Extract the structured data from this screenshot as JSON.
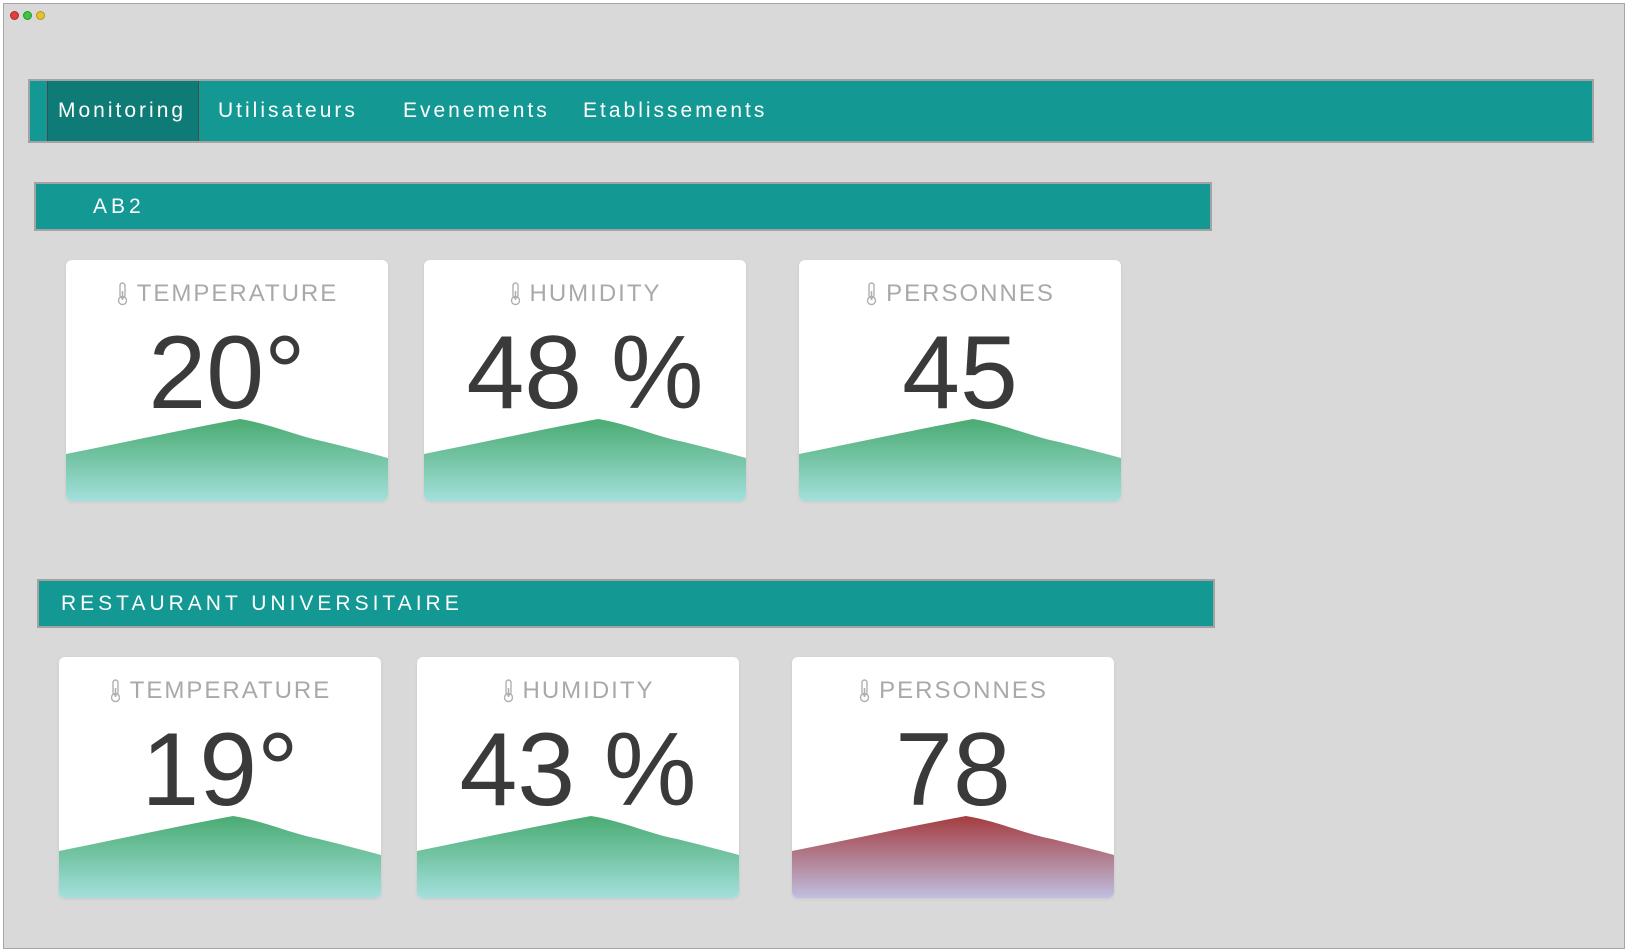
{
  "nav": {
    "items": [
      {
        "label": "Monitoring",
        "active": true
      },
      {
        "label": "Utilisateurs",
        "active": false
      },
      {
        "label": "Evenements",
        "active": false
      },
      {
        "label": "Etablissements",
        "active": false
      }
    ]
  },
  "sections": [
    {
      "title": "AB2",
      "cards": [
        {
          "label": "TEMPERATURE",
          "value": "20°",
          "icon": "thermometer-icon",
          "status": "normal"
        },
        {
          "label": "HUMIDITY",
          "value": "48 %",
          "icon": "thermometer-icon",
          "status": "normal"
        },
        {
          "label": "PERSONNES",
          "value": "45",
          "icon": "thermometer-icon",
          "status": "normal"
        }
      ]
    },
    {
      "title": "RESTAURANT UNIVERSITAIRE",
      "cards": [
        {
          "label": "TEMPERATURE",
          "value": "19°",
          "icon": "thermometer-icon",
          "status": "normal"
        },
        {
          "label": "HUMIDITY",
          "value": "43 %",
          "icon": "thermometer-icon",
          "status": "normal"
        },
        {
          "label": "PERSONNES",
          "value": "78",
          "icon": "thermometer-icon",
          "status": "alert"
        }
      ]
    }
  ],
  "colors": {
    "accent": "#139893",
    "accent_active": "#0f7b76",
    "background": "#d9d9d9",
    "wave_normal_top": "#4aab72",
    "wave_normal_bottom": "#a3e0dc",
    "wave_alert_top": "#a43c40",
    "wave_alert_bottom": "#c0bfe0"
  }
}
